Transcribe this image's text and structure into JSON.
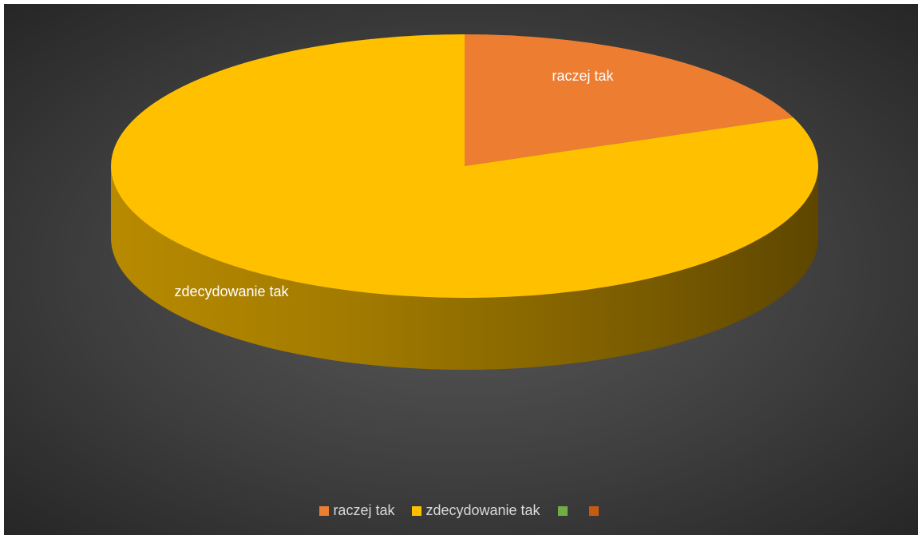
{
  "chart_data": {
    "type": "pie",
    "title": "",
    "slices": [
      {
        "label": "raczej tak",
        "value": 19,
        "color": "#ED7D31"
      },
      {
        "label": "zdecydowanie tak",
        "value": 81,
        "color": "#FFC000"
      },
      {
        "label": "",
        "value": 0,
        "color": "#70AD47"
      },
      {
        "label": "",
        "value": 0,
        "color": "#C55A11"
      }
    ],
    "data_labels": [
      "raczej tak",
      "zdecydowanie tak"
    ],
    "legend_position": "bottom",
    "style": "3d"
  }
}
